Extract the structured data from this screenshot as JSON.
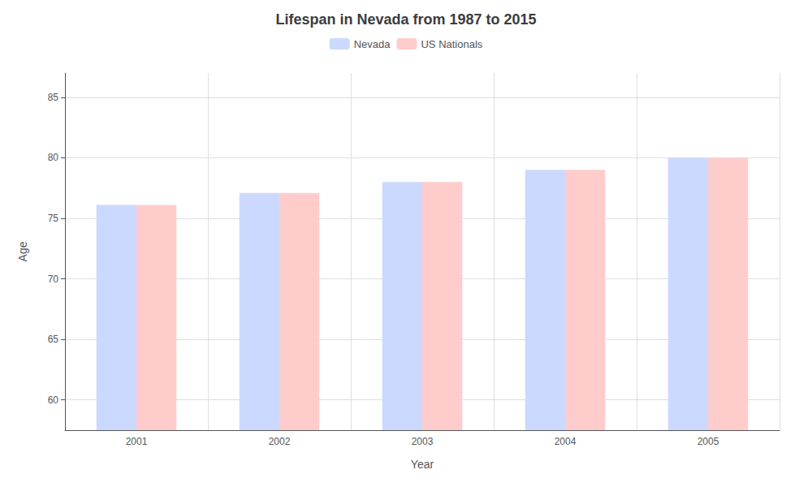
{
  "chart_data": {
    "type": "bar",
    "title": "Lifespan in Nevada from 1987 to 2015",
    "xlabel": "Year",
    "ylabel": "Age",
    "categories": [
      "2001",
      "2002",
      "2003",
      "2004",
      "2005"
    ],
    "series": [
      {
        "name": "Nevada",
        "color": "#ccd9ff",
        "values": [
          76.1,
          77.1,
          78.0,
          79.0,
          80.0
        ]
      },
      {
        "name": "US Nationals",
        "color": "#ffcccc",
        "values": [
          76.1,
          77.1,
          78.0,
          79.0,
          80.0
        ]
      }
    ],
    "ylim": [
      57.5,
      87
    ],
    "yticks": [
      60,
      65,
      70,
      75,
      80,
      85
    ],
    "grid": true,
    "legend": "top"
  }
}
